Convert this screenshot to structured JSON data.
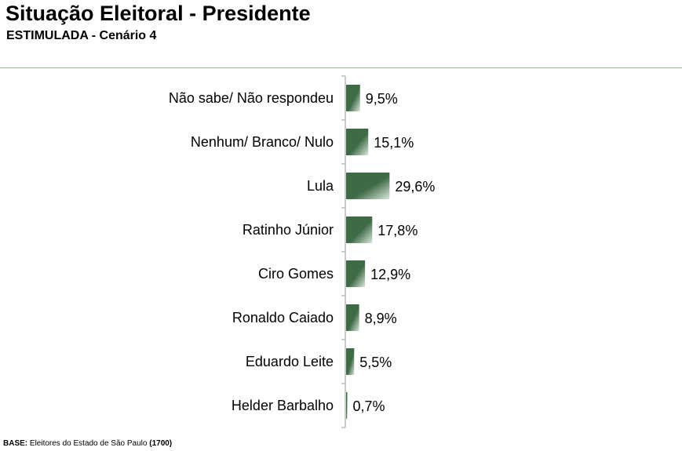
{
  "header": {
    "title": "Situação Eleitoral - Presidente",
    "subtitle": "ESTIMULADA - Cenário 4"
  },
  "footer": {
    "base_label": "BASE:",
    "base_text": " Eleitores do Estado de São Paulo ",
    "base_count": "(1700)"
  },
  "colors": {
    "bar_dark": "#3e6b46",
    "bar_light": "#dce8dc",
    "rule": "#9cb89c",
    "axis": "#aaaaaa"
  },
  "chart_data": {
    "type": "bar",
    "orientation": "horizontal",
    "title": "Situação Eleitoral - Presidente",
    "subtitle": "ESTIMULADA - Cenário 4",
    "xlabel": "",
    "ylabel": "",
    "unit": "%",
    "grid": false,
    "categories": [
      "Não sabe/ Não respondeu",
      "Nenhum/ Branco/ Nulo",
      "Lula",
      "Ratinho Júnior",
      "Ciro Gomes",
      "Ronaldo Caiado",
      "Eduardo Leite",
      "Helder Barbalho"
    ],
    "values": [
      9.5,
      15.1,
      29.6,
      17.8,
      12.9,
      8.9,
      5.5,
      0.7
    ],
    "value_labels": [
      "9,5%",
      "15,1%",
      "29,6%",
      "17,8%",
      "12,9%",
      "8,9%",
      "5,5%",
      "0,7%"
    ]
  }
}
